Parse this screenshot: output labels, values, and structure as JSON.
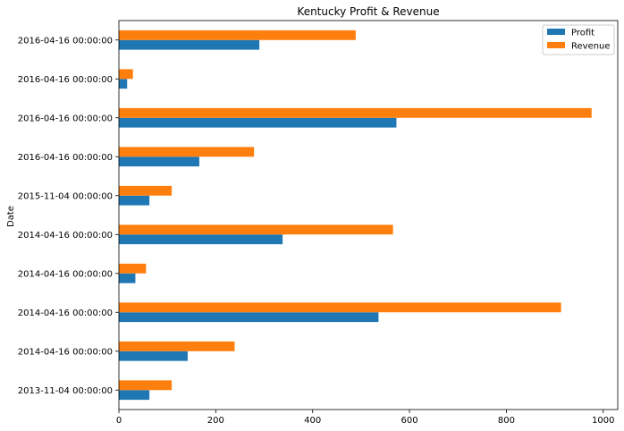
{
  "chart_data": {
    "type": "bar",
    "orientation": "horizontal",
    "title": "Kentucky Profit & Revenue",
    "xlabel": "",
    "ylabel": "Date",
    "xlim": [
      0,
      1030
    ],
    "xticks": [
      0,
      200,
      400,
      600,
      800,
      1000
    ],
    "grid": false,
    "legend_position": "top-right",
    "categories": [
      "2013-11-04 00:00:00",
      "2014-04-16 00:00:00",
      "2014-04-16 00:00:00",
      "2014-04-16 00:00:00",
      "2014-04-16 00:00:00",
      "2015-11-04 00:00:00",
      "2016-04-16 00:00:00",
      "2016-04-16 00:00:00",
      "2016-04-16 00:00:00",
      "2016-04-16 00:00:00"
    ],
    "series": [
      {
        "name": "Profit",
        "color": "#1f77b4",
        "values": [
          63,
          142,
          536,
          34,
          338,
          63,
          166,
          573,
          17,
          290
        ]
      },
      {
        "name": "Revenue",
        "color": "#ff7f0e",
        "values": [
          109,
          239,
          913,
          56,
          566,
          109,
          279,
          976,
          29,
          489
        ]
      }
    ]
  }
}
